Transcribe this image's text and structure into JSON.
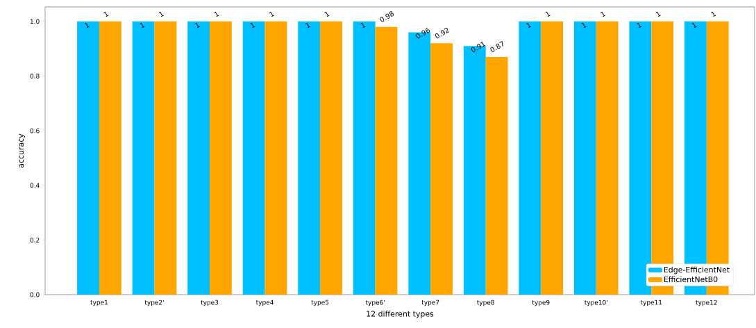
{
  "chart_data": {
    "type": "bar",
    "xlabel": "12 different types",
    "ylabel": "accuracy",
    "categories": [
      "type1",
      "type2'",
      "type3",
      "type4",
      "type5",
      "type6'",
      "type7",
      "type8",
      "type9",
      "type10'",
      "type11",
      "type12"
    ],
    "series": [
      {
        "name": "Edge-EfficientNet",
        "color": "#00bfff",
        "values": [
          1,
          1,
          1,
          1,
          1,
          1,
          0.96,
          0.91,
          1,
          1,
          1,
          1
        ]
      },
      {
        "name": "EfficientNetB0",
        "color": "#ffa500",
        "values": [
          1,
          1,
          1,
          1,
          1,
          0.98,
          0.92,
          0.87,
          1,
          1,
          1,
          1
        ]
      }
    ],
    "ylim": [
      0,
      1.053
    ],
    "yticks": [
      {
        "value": 0,
        "label": "0.0"
      },
      {
        "value": 0.2,
        "label": "0.2"
      },
      {
        "value": 0.4,
        "label": "0.4"
      },
      {
        "value": 0.6,
        "label": "0.6"
      },
      {
        "value": 0.8,
        "label": "0.8"
      },
      {
        "value": 1.0,
        "label": "1.0"
      }
    ],
    "data_labels": true,
    "legend": "bottom right",
    "grid": false
  }
}
